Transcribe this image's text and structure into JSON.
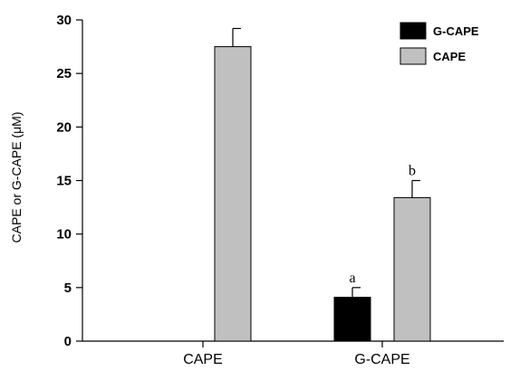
{
  "chart_data": {
    "type": "bar",
    "title": "",
    "xlabel": "",
    "ylabel": "CAPE or G-CAPE (μM)",
    "ylim": [
      0,
      30
    ],
    "yticks": [
      "0",
      "5",
      "10",
      "15",
      "20",
      "25",
      "30"
    ],
    "categories": [
      "CAPE",
      "G-CAPE"
    ],
    "series": [
      {
        "name": "G-CAPE",
        "color": "#000000",
        "values": [
          0,
          4.1
        ],
        "errors": [
          0,
          0.9
        ]
      },
      {
        "name": "CAPE",
        "color": "#c0c0c0",
        "values": [
          27.5,
          13.4
        ],
        "errors": [
          1.7,
          1.6
        ]
      }
    ],
    "annotations": [
      {
        "text": "a",
        "category": "G-CAPE",
        "series": "G-CAPE"
      },
      {
        "text": "b",
        "category": "G-CAPE",
        "series": "CAPE"
      }
    ],
    "legend": {
      "position": "top-right"
    },
    "grid": false
  }
}
